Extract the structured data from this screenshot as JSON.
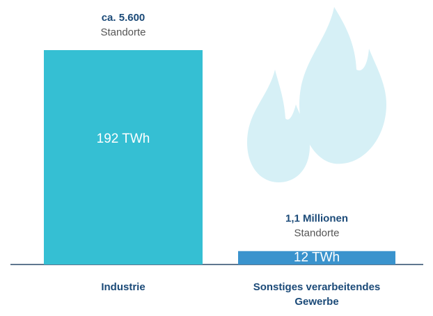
{
  "chart_data": {
    "type": "bar",
    "categories": [
      "Industrie",
      "Sonstiges verarbeitendes Gewerbe"
    ],
    "values": [
      192,
      12
    ],
    "value_labels": [
      "192 TWh",
      "12 TWh"
    ],
    "colors": [
      "#35bfd3",
      "#3a93cd"
    ],
    "site_counts": [
      "ca. 5.600",
      "1,1 Millionen"
    ],
    "site_units": [
      "Standorte",
      "Standorte"
    ]
  }
}
